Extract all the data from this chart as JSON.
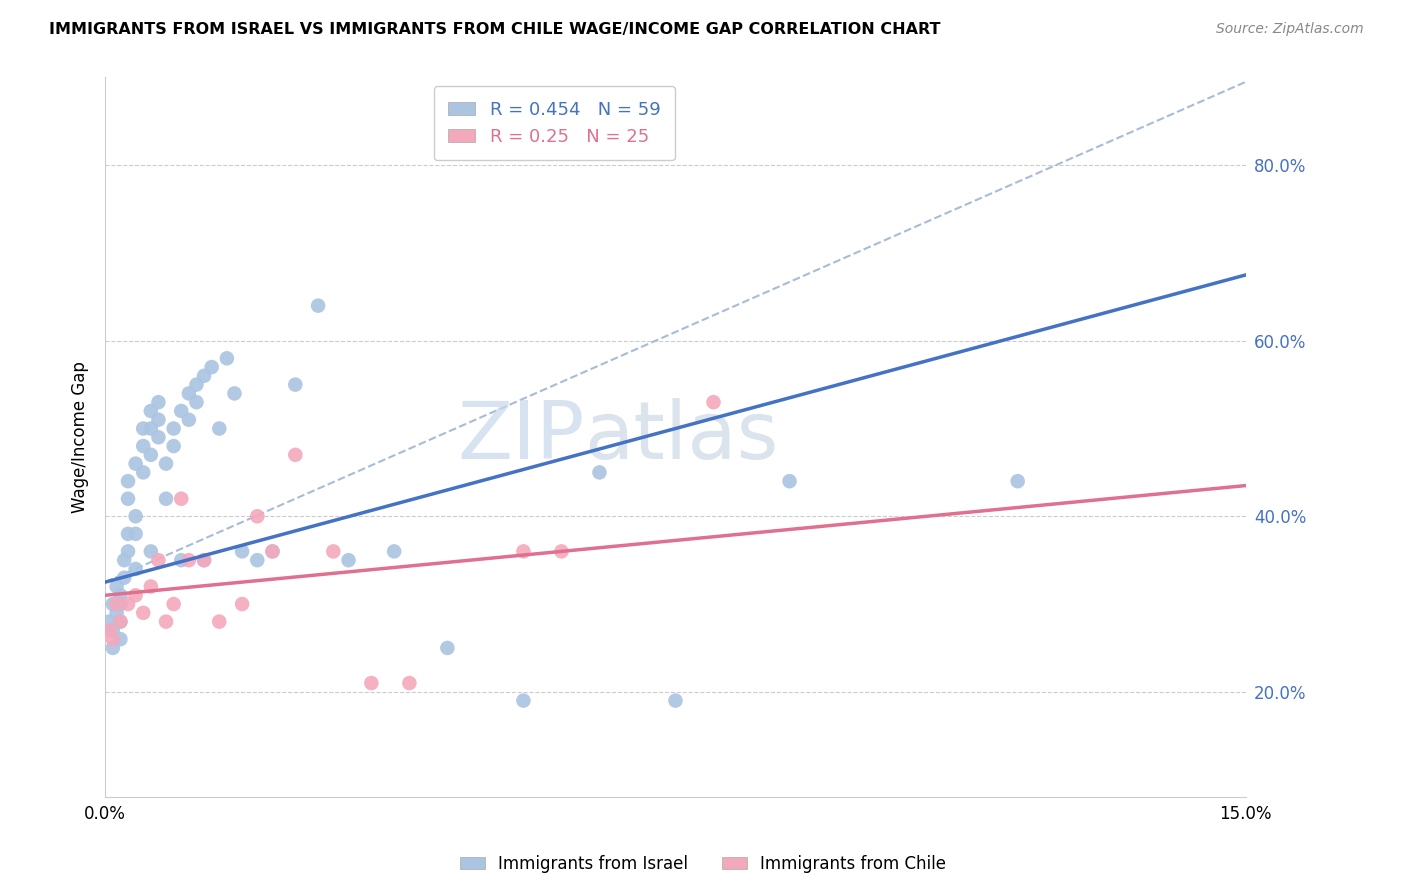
{
  "title": "IMMIGRANTS FROM ISRAEL VS IMMIGRANTS FROM CHILE WAGE/INCOME GAP CORRELATION CHART",
  "source": "Source: ZipAtlas.com",
  "ylabel": "Wage/Income Gap",
  "xlim": [
    0.0,
    0.15
  ],
  "ylim": [
    0.08,
    0.9
  ],
  "y_ticks": [
    0.2,
    0.4,
    0.6,
    0.8
  ],
  "y_tick_labels": [
    "20.0%",
    "40.0%",
    "60.0%",
    "80.0%"
  ],
  "x_ticks": [
    0.0,
    0.03,
    0.06,
    0.09,
    0.12,
    0.15
  ],
  "x_tick_labels": [
    "0.0%",
    "",
    "",
    "",
    "",
    "15.0%"
  ],
  "israel_R": 0.454,
  "israel_N": 59,
  "chile_R": 0.25,
  "chile_N": 25,
  "israel_color": "#aac4e2",
  "chile_color": "#f4a8bc",
  "israel_line_color": "#4472c4",
  "chile_line_color": "#e07090",
  "dashed_line_color": "#a8bcd8",
  "watermark_zip": "ZIP",
  "watermark_atlas": "atlas",
  "israel_scatter_x": [
    0.0005,
    0.001,
    0.001,
    0.001,
    0.0015,
    0.0015,
    0.002,
    0.002,
    0.002,
    0.002,
    0.0025,
    0.0025,
    0.003,
    0.003,
    0.003,
    0.003,
    0.004,
    0.004,
    0.004,
    0.004,
    0.005,
    0.005,
    0.005,
    0.006,
    0.006,
    0.006,
    0.006,
    0.007,
    0.007,
    0.007,
    0.008,
    0.008,
    0.009,
    0.009,
    0.01,
    0.01,
    0.011,
    0.011,
    0.012,
    0.012,
    0.013,
    0.013,
    0.014,
    0.015,
    0.016,
    0.017,
    0.018,
    0.02,
    0.022,
    0.025,
    0.028,
    0.032,
    0.038,
    0.045,
    0.055,
    0.065,
    0.075,
    0.09,
    0.12
  ],
  "israel_scatter_y": [
    0.28,
    0.3,
    0.27,
    0.25,
    0.29,
    0.32,
    0.3,
    0.28,
    0.26,
    0.31,
    0.33,
    0.35,
    0.38,
    0.36,
    0.42,
    0.44,
    0.4,
    0.38,
    0.34,
    0.46,
    0.45,
    0.48,
    0.5,
    0.47,
    0.5,
    0.52,
    0.36,
    0.51,
    0.49,
    0.53,
    0.46,
    0.42,
    0.5,
    0.48,
    0.52,
    0.35,
    0.54,
    0.51,
    0.55,
    0.53,
    0.56,
    0.35,
    0.57,
    0.5,
    0.58,
    0.54,
    0.36,
    0.35,
    0.36,
    0.55,
    0.64,
    0.35,
    0.36,
    0.25,
    0.19,
    0.45,
    0.19,
    0.44,
    0.44
  ],
  "chile_scatter_x": [
    0.0005,
    0.001,
    0.0015,
    0.002,
    0.003,
    0.004,
    0.005,
    0.006,
    0.007,
    0.008,
    0.009,
    0.01,
    0.011,
    0.013,
    0.015,
    0.018,
    0.02,
    0.022,
    0.025,
    0.03,
    0.035,
    0.04,
    0.055,
    0.06,
    0.08
  ],
  "chile_scatter_y": [
    0.27,
    0.26,
    0.3,
    0.28,
    0.3,
    0.31,
    0.29,
    0.32,
    0.35,
    0.28,
    0.3,
    0.42,
    0.35,
    0.35,
    0.28,
    0.3,
    0.4,
    0.36,
    0.47,
    0.36,
    0.21,
    0.21,
    0.36,
    0.36,
    0.53
  ],
  "israel_trendline_x": [
    0.0,
    0.15
  ],
  "israel_trendline_y": [
    0.325,
    0.675
  ],
  "chile_trendline_x": [
    0.0,
    0.15
  ],
  "chile_trendline_y": [
    0.31,
    0.435
  ],
  "dashed_line_x": [
    0.0,
    0.15
  ],
  "dashed_line_y": [
    0.325,
    0.895
  ]
}
